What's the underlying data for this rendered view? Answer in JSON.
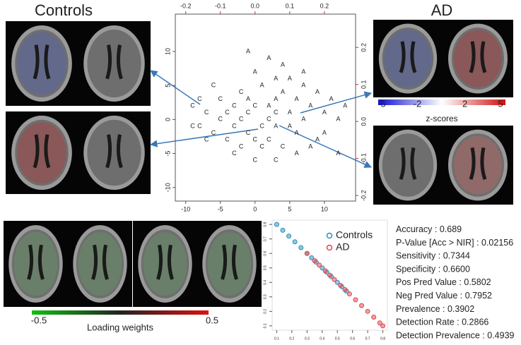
{
  "labels": {
    "controls": "Controls",
    "ad": "AD"
  },
  "zscore_bar": {
    "label": "z-scores",
    "ticks": [
      -5,
      -2,
      2,
      5
    ]
  },
  "loading_bar": {
    "label": "Loading weights",
    "ticks": [
      -0.5,
      0.5
    ]
  },
  "chart_data": [
    {
      "type": "scatter",
      "xlim": [
        -11.5,
        14.5
      ],
      "ylim": [
        -12,
        15.5
      ],
      "xticks": [
        -10,
        -5,
        0,
        5,
        10
      ],
      "yticks": [
        -10,
        -5,
        0,
        5,
        10
      ],
      "x2lim": [
        -0.23,
        0.29
      ],
      "x2ticks": [
        -0.2,
        -0.1,
        {
          "value": 0,
          "label": "0.0"
        },
        0.1,
        0.2
      ],
      "y2lim": [
        -0.215,
        0.29
      ],
      "y2ticks": [
        -0.2,
        -0.1,
        {
          "value": 0,
          "label": "0.0"
        },
        0.1,
        0.2
      ],
      "series": [
        {
          "name": "C",
          "color": "#222222",
          "x": [
            -9,
            -8,
            -7,
            -6,
            -6,
            -5,
            -5,
            -4,
            -4,
            -3,
            -3,
            -2,
            -2,
            -1,
            -1,
            0,
            0,
            1,
            1,
            2,
            2,
            3,
            3,
            -7,
            -8,
            -9,
            -2,
            0,
            4,
            -3
          ],
          "values": [
            2,
            3,
            1,
            5,
            -2,
            0,
            3,
            -3,
            1,
            -1,
            2,
            -4,
            0,
            1,
            -2,
            -6,
            2,
            -1,
            -4,
            0,
            -3,
            1,
            -6,
            -3,
            -1,
            -1,
            4,
            -3,
            -4,
            -5
          ]
        },
        {
          "name": "A",
          "color": "#222222",
          "x": [
            -1,
            0,
            1,
            2,
            2,
            3,
            3,
            4,
            4,
            5,
            5,
            6,
            6,
            7,
            7,
            8,
            8,
            9,
            10,
            10,
            11,
            12,
            13,
            12,
            -1,
            6,
            9,
            3,
            5,
            7
          ],
          "values": [
            3,
            7,
            5,
            9,
            2,
            6,
            -1,
            4,
            8,
            1,
            6,
            3,
            -2,
            5,
            0,
            2,
            -4,
            4,
            1,
            -2,
            3,
            0,
            2,
            -5,
            10,
            -5,
            -3,
            3,
            -1,
            7
          ]
        }
      ]
    },
    {
      "type": "scatter",
      "xlim": [
        0.07,
        0.83
      ],
      "ylim": [
        0.07,
        0.83
      ],
      "xticks": [
        0.1,
        0.2,
        0.3,
        0.4,
        0.5,
        0.6,
        0.7,
        0.8
      ],
      "yticks": [
        0.1,
        0.2,
        0.3,
        0.4,
        0.5,
        0.6,
        0.7,
        0.8
      ],
      "legend": "top-right",
      "series": [
        {
          "name": "Controls",
          "color": "#2a8fbd",
          "x": [
            0.1,
            0.14,
            0.18,
            0.22,
            0.26,
            0.3,
            0.33,
            0.36,
            0.4,
            0.43,
            0.46,
            0.5,
            0.53,
            0.56
          ],
          "values": [
            0.8,
            0.76,
            0.72,
            0.68,
            0.64,
            0.6,
            0.57,
            0.54,
            0.5,
            0.47,
            0.44,
            0.4,
            0.37,
            0.34
          ]
        },
        {
          "name": "AD",
          "color": "#e0454a",
          "x": [
            0.3,
            0.35,
            0.38,
            0.42,
            0.45,
            0.48,
            0.52,
            0.55,
            0.58,
            0.62,
            0.66,
            0.7,
            0.74,
            0.78,
            0.8
          ],
          "values": [
            0.6,
            0.55,
            0.52,
            0.48,
            0.45,
            0.42,
            0.38,
            0.35,
            0.32,
            0.28,
            0.24,
            0.2,
            0.16,
            0.12,
            0.1
          ]
        }
      ]
    }
  ],
  "metrics": [
    {
      "name": "Accuracy",
      "value": "0.689"
    },
    {
      "name": "P-Value [Acc > NIR]",
      "value": "0.02156"
    },
    {
      "name": "Sensitivity",
      "value": "0.7344"
    },
    {
      "name": "Specificity",
      "value": "0.6600"
    },
    {
      "name": "Pos Pred Value",
      "value": "0.5802"
    },
    {
      "name": "Neg Pred Value",
      "value": "0.7952"
    },
    {
      "name": "Prevalence",
      "value": "0.3902"
    },
    {
      "name": "Detection Rate",
      "value": "0.2866"
    },
    {
      "name": "Detection Prevalence",
      "value": "0.4939"
    }
  ]
}
